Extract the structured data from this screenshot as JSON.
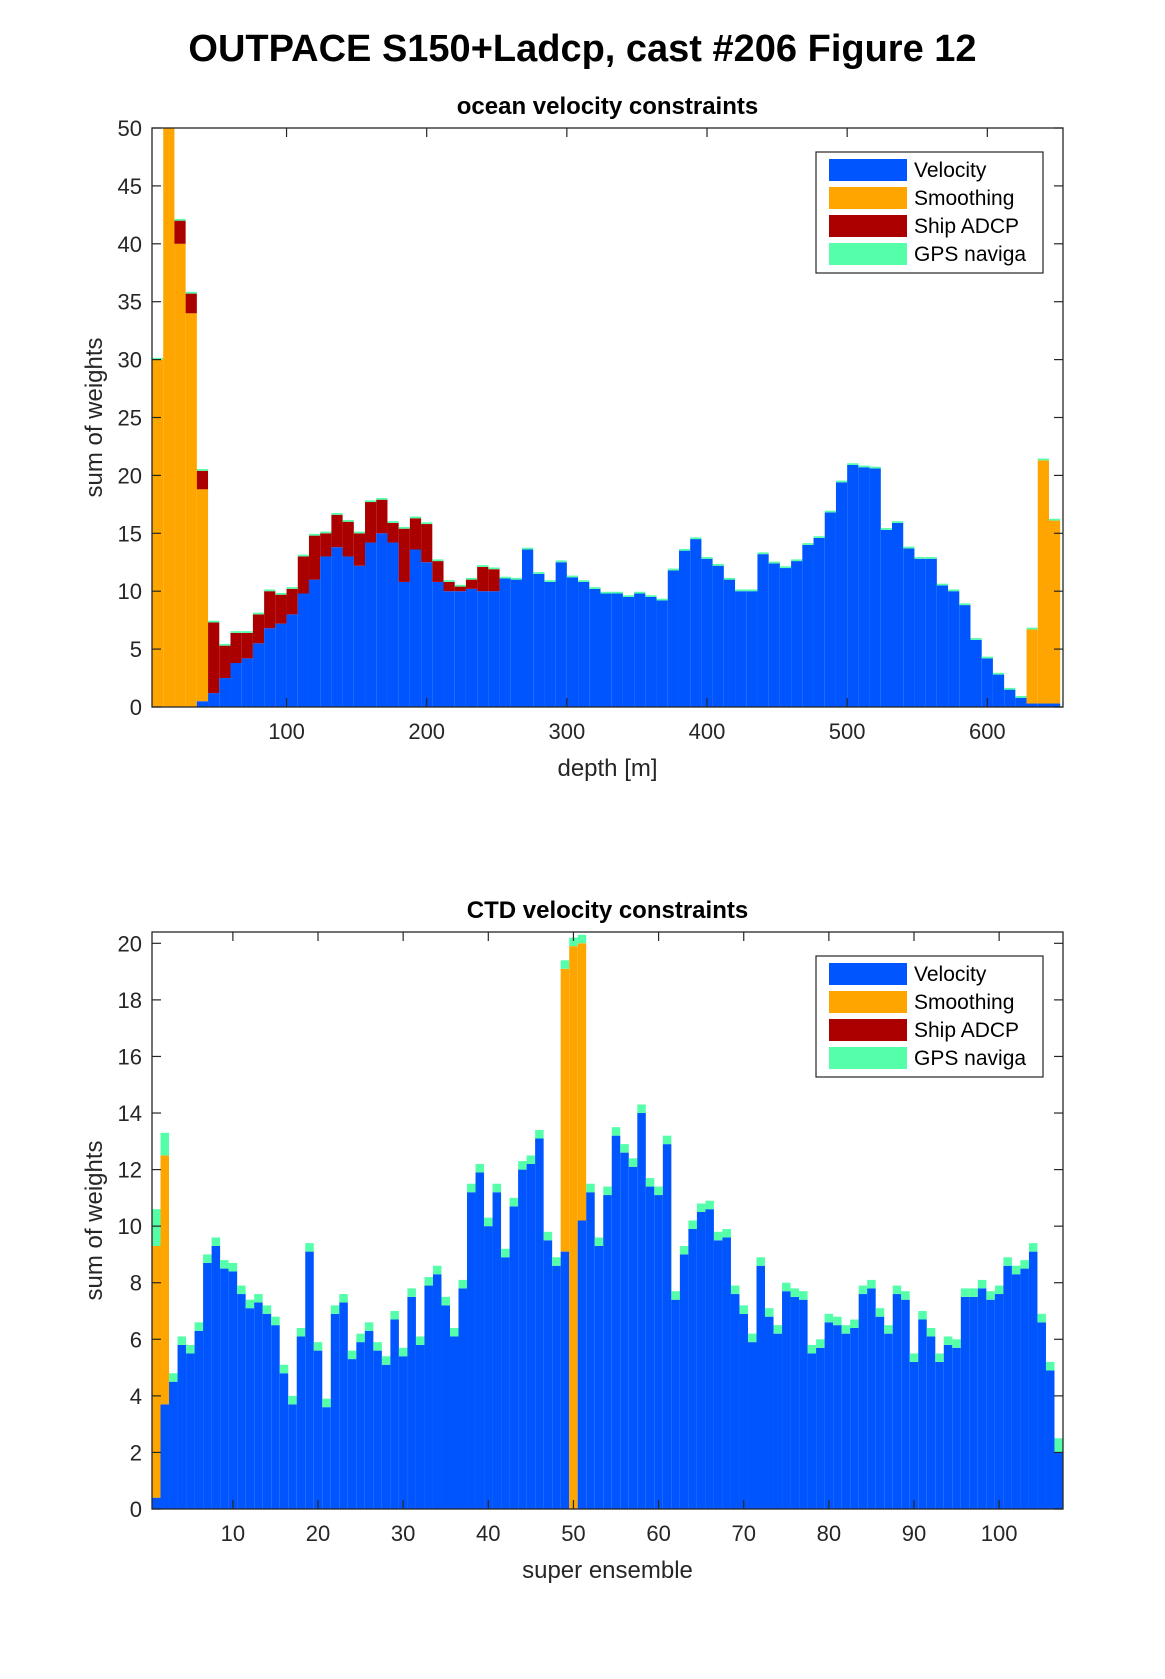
{
  "figure": {
    "title": "OUTPACE S150+Ladcp, cast #206  Figure 12"
  },
  "colors": {
    "velocity": "#0055ff",
    "smoothing": "#ffa500",
    "ship_adcp": "#aa0000",
    "gps": "#55ffaa"
  },
  "chart_data": [
    {
      "type": "bar",
      "stacked": true,
      "title": "ocean velocity constraints",
      "xlabel": "depth [m]",
      "ylabel": "sum of weights",
      "xlim": [
        4,
        654
      ],
      "ylim": [
        0,
        50
      ],
      "bin_width": 8,
      "xticks": [
        100,
        200,
        300,
        400,
        500,
        600
      ],
      "yticks": [
        0,
        5,
        10,
        15,
        20,
        25,
        30,
        35,
        40,
        45,
        50
      ],
      "grid": false,
      "legend_position": "top-right",
      "x": [
        8,
        16,
        24,
        32,
        40,
        48,
        56,
        64,
        72,
        80,
        88,
        96,
        104,
        112,
        120,
        128,
        136,
        144,
        152,
        160,
        168,
        176,
        184,
        192,
        200,
        208,
        216,
        224,
        232,
        240,
        248,
        256,
        264,
        272,
        280,
        288,
        296,
        304,
        312,
        320,
        328,
        336,
        344,
        352,
        360,
        368,
        376,
        384,
        392,
        400,
        408,
        416,
        424,
        432,
        440,
        448,
        456,
        464,
        472,
        480,
        488,
        496,
        504,
        512,
        520,
        528,
        536,
        544,
        552,
        560,
        568,
        576,
        584,
        592,
        600,
        608,
        616,
        624,
        632,
        640,
        648
      ],
      "series": [
        {
          "name": "Velocity",
          "values": [
            0,
            0,
            0,
            0,
            0.5,
            1.2,
            2.5,
            3.8,
            4.2,
            5.5,
            6.8,
            7.2,
            8,
            9.8,
            11,
            13,
            13.8,
            13,
            12.2,
            14.2,
            15,
            14.2,
            10.8,
            13.6,
            12.5,
            10.8,
            10,
            10,
            10.2,
            10,
            10,
            11.1,
            11,
            13.6,
            11.5,
            10.8,
            12.5,
            11.2,
            10.8,
            10.2,
            9.8,
            9.8,
            9.5,
            9.8,
            9.5,
            9.2,
            11.8,
            13.5,
            14.5,
            12.8,
            12.2,
            11,
            10,
            10,
            13.2,
            12.4,
            12,
            12.6,
            14,
            14.6,
            16.8,
            19.4,
            20.9,
            20.7,
            20.6,
            15.3,
            15.9,
            13.7,
            12.8,
            12.8,
            10.5,
            10,
            8.8,
            5.8,
            4.2,
            2.8,
            1.5,
            0.8,
            0.3,
            0.3,
            0.3
          ]
        },
        {
          "name": "Smoothing",
          "values": [
            30,
            50,
            40,
            34,
            18.3,
            0,
            0,
            0,
            0,
            0,
            0,
            0,
            0,
            0,
            0,
            0,
            0,
            0,
            0,
            0,
            0,
            0,
            0,
            0,
            0,
            0,
            0,
            0,
            0,
            0,
            0,
            0,
            0,
            0,
            0,
            0,
            0,
            0,
            0,
            0,
            0,
            0,
            0,
            0,
            0,
            0,
            0,
            0,
            0,
            0,
            0,
            0,
            0,
            0,
            0,
            0,
            0,
            0,
            0,
            0,
            0,
            0,
            0,
            0,
            0,
            0,
            0,
            0,
            0,
            0,
            0,
            0,
            0,
            0,
            0,
            0,
            0,
            0,
            6.4,
            21,
            15.8
          ]
        },
        {
          "name": "Ship ADCP",
          "values": [
            0,
            0,
            2,
            1.7,
            1.6,
            6.1,
            2.8,
            2.6,
            2.2,
            2.5,
            3.2,
            2.5,
            2.2,
            3.2,
            3.8,
            2,
            2.8,
            3,
            2.8,
            3.5,
            2.9,
            1.7,
            4.6,
            2.7,
            3.3,
            1.8,
            0.8,
            0.4,
            0.8,
            2.1,
            1.9,
            0,
            0,
            0,
            0,
            0,
            0,
            0,
            0,
            0,
            0,
            0,
            0,
            0,
            0,
            0,
            0,
            0,
            0,
            0,
            0,
            0,
            0,
            0,
            0,
            0,
            0,
            0,
            0,
            0,
            0,
            0,
            0,
            0,
            0,
            0,
            0,
            0,
            0,
            0,
            0,
            0,
            0,
            0,
            0,
            0,
            0,
            0,
            0,
            0,
            0
          ]
        },
        {
          "name": "GPS naviga",
          "values": [
            0.15,
            0.15,
            0.15,
            0.15,
            0.15,
            0.15,
            0.15,
            0.15,
            0.15,
            0.15,
            0.15,
            0.15,
            0.15,
            0.15,
            0.15,
            0.15,
            0.15,
            0.15,
            0.15,
            0.15,
            0.15,
            0.15,
            0.15,
            0.15,
            0.15,
            0.15,
            0.15,
            0.15,
            0.15,
            0.15,
            0.15,
            0.15,
            0.15,
            0.15,
            0.15,
            0.15,
            0.15,
            0.15,
            0.15,
            0.15,
            0.15,
            0.15,
            0.15,
            0.15,
            0.15,
            0.15,
            0.15,
            0.15,
            0.15,
            0.15,
            0.15,
            0.15,
            0.15,
            0.15,
            0.15,
            0.15,
            0.15,
            0.15,
            0.15,
            0.15,
            0.15,
            0.15,
            0.15,
            0.15,
            0.15,
            0.15,
            0.15,
            0.15,
            0.15,
            0.15,
            0.15,
            0.15,
            0.15,
            0.15,
            0.15,
            0.15,
            0.15,
            0.15,
            0.15,
            0.15,
            0.15
          ]
        }
      ]
    },
    {
      "type": "bar",
      "stacked": true,
      "title": "CTD velocity constraints",
      "xlabel": "super ensemble",
      "ylabel": "sum of weights",
      "xlim": [
        0.5,
        107.5
      ],
      "ylim": [
        0,
        20.4
      ],
      "bin_width": 1,
      "xticks": [
        10,
        20,
        30,
        40,
        50,
        60,
        70,
        80,
        90,
        100
      ],
      "yticks": [
        0,
        2,
        4,
        6,
        8,
        10,
        12,
        14,
        16,
        18,
        20
      ],
      "grid": false,
      "legend_position": "top-right",
      "x": [
        1,
        2,
        3,
        4,
        5,
        6,
        7,
        8,
        9,
        10,
        11,
        12,
        13,
        14,
        15,
        16,
        17,
        18,
        19,
        20,
        21,
        22,
        23,
        24,
        25,
        26,
        27,
        28,
        29,
        30,
        31,
        32,
        33,
        34,
        35,
        36,
        37,
        38,
        39,
        40,
        41,
        42,
        43,
        44,
        45,
        46,
        47,
        48,
        49,
        50,
        51,
        52,
        53,
        54,
        55,
        56,
        57,
        58,
        59,
        60,
        61,
        62,
        63,
        64,
        65,
        66,
        67,
        68,
        69,
        70,
        71,
        72,
        73,
        74,
        75,
        76,
        77,
        78,
        79,
        80,
        81,
        82,
        83,
        84,
        85,
        86,
        87,
        88,
        89,
        90,
        91,
        92,
        93,
        94,
        95,
        96,
        97,
        98,
        99,
        100,
        101,
        102,
        103,
        104,
        105,
        106,
        107
      ],
      "series": [
        {
          "name": "Velocity",
          "values": [
            0.4,
            3.7,
            4.5,
            5.8,
            5.5,
            6.3,
            8.7,
            9.3,
            8.5,
            8.4,
            7.6,
            7.1,
            7.3,
            6.9,
            6.5,
            4.8,
            3.7,
            6.1,
            9.1,
            5.6,
            3.6,
            6.9,
            7.3,
            5.3,
            5.9,
            6.3,
            5.6,
            5.1,
            6.7,
            5.4,
            7.5,
            5.8,
            7.9,
            8.3,
            7.2,
            6.1,
            7.8,
            11.2,
            11.9,
            10,
            11.2,
            8.9,
            10.7,
            12,
            12.2,
            13.1,
            9.5,
            8.6,
            9.1,
            0,
            10.2,
            11.2,
            9.3,
            11.1,
            13.2,
            12.6,
            12.1,
            14,
            11.4,
            11.1,
            12.9,
            7.4,
            9,
            9.9,
            10.5,
            10.6,
            9.5,
            9.6,
            7.6,
            6.9,
            5.9,
            8.6,
            6.8,
            6.2,
            7.7,
            7.5,
            7.4,
            5.5,
            5.7,
            6.6,
            6.5,
            6.2,
            6.4,
            7.6,
            7.8,
            6.8,
            6.2,
            7.6,
            7.4,
            5.2,
            6.7,
            6.1,
            5.2,
            5.8,
            5.7,
            7.5,
            7.5,
            7.8,
            7.4,
            7.6,
            8.6,
            8.3,
            8.5,
            9.1,
            6.6,
            4.9,
            2
          ]
        },
        {
          "name": "Smoothing",
          "values": [
            8.9,
            8.8,
            0,
            0,
            0,
            0,
            0,
            0,
            0,
            0,
            0,
            0,
            0,
            0,
            0,
            0,
            0,
            0,
            0,
            0,
            0,
            0,
            0,
            0,
            0,
            0,
            0,
            0,
            0,
            0,
            0,
            0,
            0,
            0,
            0,
            0,
            0,
            0,
            0,
            0,
            0,
            0,
            0,
            0,
            0,
            0,
            0,
            0,
            10,
            19.9,
            9.8,
            0,
            0,
            0,
            0,
            0,
            0,
            0,
            0,
            0,
            0,
            0,
            0,
            0,
            0,
            0,
            0,
            0,
            0,
            0,
            0,
            0,
            0,
            0,
            0,
            0,
            0,
            0,
            0,
            0,
            0,
            0,
            0,
            0,
            0,
            0,
            0,
            0,
            0,
            0,
            0,
            0,
            0,
            0,
            0,
            0,
            0,
            0,
            0,
            0,
            0,
            0,
            0,
            0,
            0,
            0,
            0
          ]
        },
        {
          "name": "Ship ADCP",
          "values": [
            0,
            0,
            0,
            0,
            0,
            0,
            0,
            0,
            0,
            0,
            0,
            0,
            0,
            0,
            0,
            0,
            0,
            0,
            0,
            0,
            0,
            0,
            0,
            0,
            0,
            0,
            0,
            0,
            0,
            0,
            0,
            0,
            0,
            0,
            0,
            0,
            0,
            0,
            0,
            0,
            0,
            0,
            0,
            0,
            0,
            0,
            0,
            0,
            0,
            0,
            0,
            0,
            0,
            0,
            0,
            0,
            0,
            0,
            0,
            0,
            0,
            0,
            0,
            0,
            0,
            0,
            0,
            0,
            0,
            0,
            0,
            0,
            0,
            0,
            0,
            0,
            0,
            0,
            0,
            0,
            0,
            0,
            0,
            0,
            0,
            0,
            0,
            0,
            0,
            0,
            0,
            0,
            0,
            0,
            0,
            0,
            0,
            0,
            0,
            0,
            0,
            0,
            0,
            0,
            0,
            0,
            0
          ]
        },
        {
          "name": "GPS naviga",
          "values": [
            1.3,
            0.8,
            0.3,
            0.3,
            0.3,
            0.3,
            0.3,
            0.3,
            0.3,
            0.3,
            0.3,
            0.3,
            0.3,
            0.3,
            0.3,
            0.3,
            0.3,
            0.3,
            0.3,
            0.3,
            0.3,
            0.3,
            0.3,
            0.3,
            0.3,
            0.3,
            0.3,
            0.3,
            0.3,
            0.3,
            0.3,
            0.3,
            0.3,
            0.3,
            0.3,
            0.3,
            0.3,
            0.3,
            0.3,
            0.3,
            0.3,
            0.3,
            0.3,
            0.3,
            0.3,
            0.3,
            0.3,
            0.3,
            0.3,
            0.3,
            0.3,
            0.3,
            0.3,
            0.3,
            0.3,
            0.3,
            0.3,
            0.3,
            0.3,
            0.3,
            0.3,
            0.3,
            0.3,
            0.3,
            0.3,
            0.3,
            0.3,
            0.3,
            0.3,
            0.3,
            0.3,
            0.3,
            0.3,
            0.3,
            0.3,
            0.3,
            0.3,
            0.3,
            0.3,
            0.3,
            0.3,
            0.3,
            0.3,
            0.3,
            0.3,
            0.3,
            0.3,
            0.3,
            0.3,
            0.3,
            0.3,
            0.3,
            0.3,
            0.3,
            0.3,
            0.3,
            0.3,
            0.3,
            0.3,
            0.3,
            0.3,
            0.3,
            0.3,
            0.3,
            0.3,
            0.3,
            0.5
          ]
        }
      ]
    }
  ]
}
